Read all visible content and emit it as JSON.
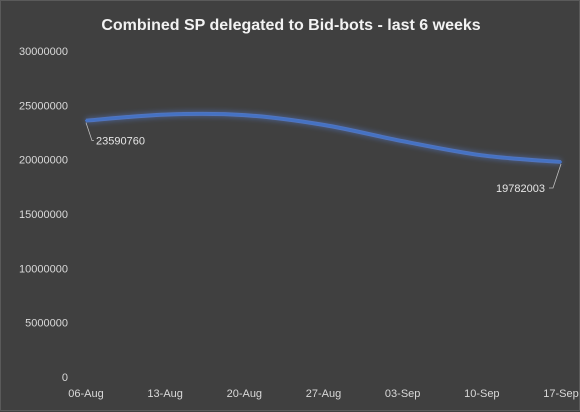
{
  "chart_data": {
    "type": "line",
    "title": "Combined SP delegated to Bid-bots - last 6 weeks",
    "xlabel": "",
    "ylabel": "",
    "categories": [
      "06-Aug",
      "13-Aug",
      "20-Aug",
      "27-Aug",
      "03-Sep",
      "10-Sep",
      "17-Sep"
    ],
    "series": [
      {
        "values": [
          23590760,
          24150000,
          24100000,
          23200000,
          21700000,
          20400000,
          19782003
        ]
      }
    ],
    "data_labels": [
      {
        "index": 0,
        "text": "23590760"
      },
      {
        "index": 6,
        "text": "19782003"
      }
    ],
    "ylim": [
      0,
      30000000
    ],
    "yticks": [
      "0",
      "5000000",
      "10000000",
      "15000000",
      "20000000",
      "25000000",
      "30000000"
    ],
    "grid": false,
    "legend": "none",
    "colors": {
      "background": "#404040",
      "line": "#4472c4",
      "glow": "#5b8fff",
      "text": "#d9d9d9",
      "leader": "#bfbfbf"
    }
  }
}
